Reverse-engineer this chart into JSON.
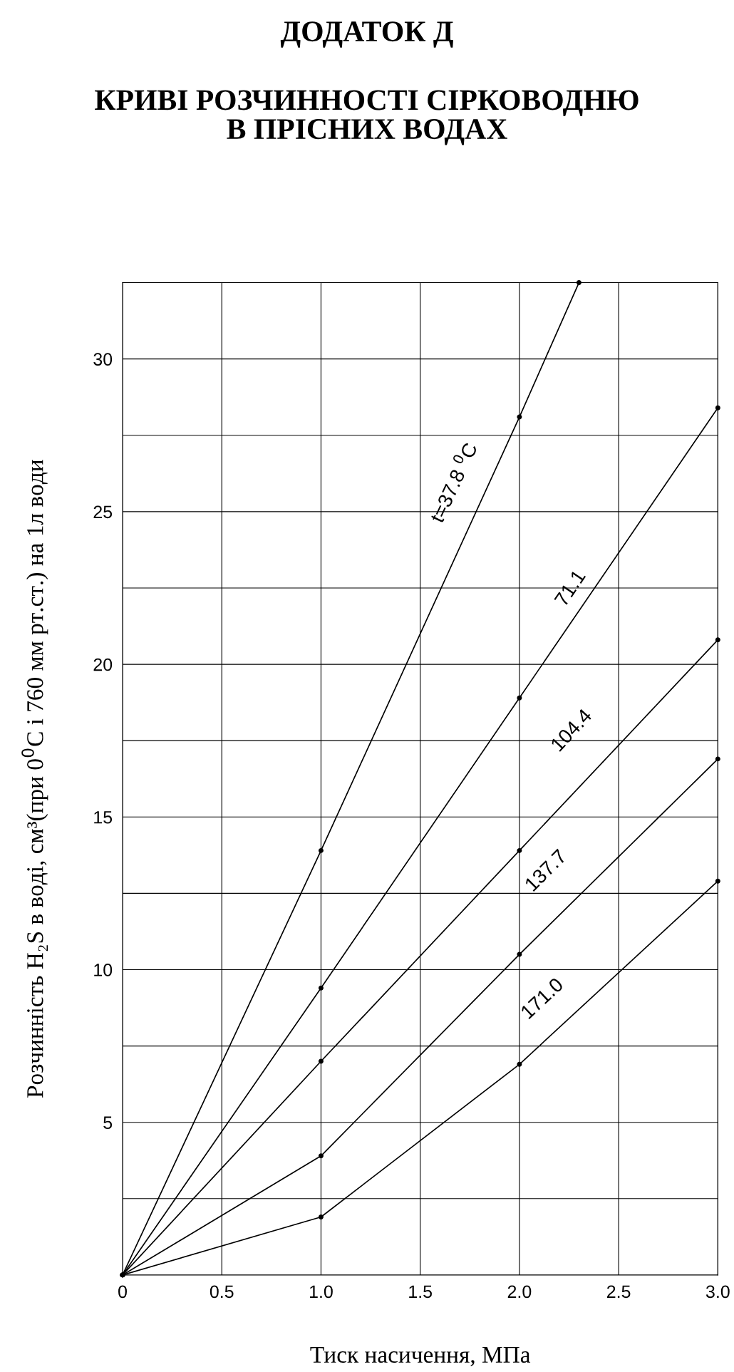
{
  "chart_data": {
    "type": "line",
    "title": "ДОДАТОК Д",
    "subtitle": "КРИВІ РОЗЧИННОСТІ СІРКОВОДНЮ\nВ ПРІСНИХ ВОДАХ",
    "xlabel": "Тиск насичення, МПа",
    "ylabel": "Розчинність H₂S в воді, см³(при 0$^{0}$C і 760 мм рт.ст.) на 1л води",
    "series": [
      {
        "color": "#000000",
        "x": [
          0,
          1,
          2,
          2.3
        ],
        "values": [
          0,
          13.9,
          28.1,
          32.5
        ]
      },
      {
        "color": "#000000",
        "x": [
          0,
          1,
          2,
          3
        ],
        "values": [
          0,
          9.4,
          18.9,
          28.4
        ]
      },
      {
        "color": "#000000",
        "x": [
          0,
          1,
          2,
          3
        ],
        "values": [
          0,
          7.0,
          13.9,
          20.8
        ]
      },
      {
        "color": "#000000",
        "x": [
          0,
          1,
          2,
          3
        ],
        "values": [
          0,
          3.9,
          10.5,
          16.9
        ]
      },
      {
        "color": "#000000",
        "x": [
          0,
          1,
          2,
          3
        ],
        "values": [
          0,
          1.9,
          6.9,
          12.9
        ]
      }
    ],
    "annotations": [
      "t=37.8 $^{0}$C",
      "71.1",
      "104.4",
      "137.7",
      "171.0"
    ],
    "xlim": [
      0,
      3
    ],
    "xticks": [
      0,
      0.5,
      {
        "value": 1,
        "label": "1.0"
      },
      1.5,
      {
        "value": 2,
        "label": "2.0"
      },
      2.5,
      {
        "value": 3,
        "label": "3.0"
      }
    ],
    "ylim": [
      0,
      32.5
    ],
    "yticks": [
      {
        "value": 2.5,
        "label": null
      },
      5,
      {
        "value": 7.5,
        "label": null
      },
      10,
      {
        "value": 12.5,
        "label": null
      },
      15,
      {
        "value": 17.5,
        "label": null
      },
      20,
      {
        "value": 22.5,
        "label": null
      },
      25,
      {
        "value": 27.5,
        "label": null
      },
      30
    ],
    "grid": true,
    "marker": "circle",
    "line_style": "solid"
  }
}
